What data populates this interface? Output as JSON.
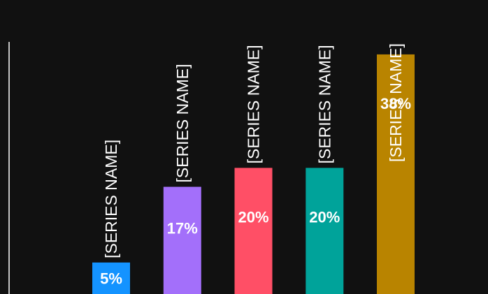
{
  "chart_data": {
    "type": "bar",
    "categories": [
      "[SERIES NAME]",
      "[SERIES NAME]",
      "[SERIES NAME]",
      "[SERIES NAME]",
      "[SERIES NAME]"
    ],
    "values": [
      5,
      17,
      20,
      20,
      38
    ],
    "data_labels": [
      "5%",
      "17%",
      "20%",
      "20%",
      "38%"
    ],
    "colors": [
      "#1493ff",
      "#a36ffa",
      "#ff4f66",
      "#00a39a",
      "#b98400"
    ],
    "ylim": [
      0,
      40
    ],
    "grid": false,
    "legend": "none",
    "background": "#111111",
    "axis_color": "#ffffff"
  }
}
